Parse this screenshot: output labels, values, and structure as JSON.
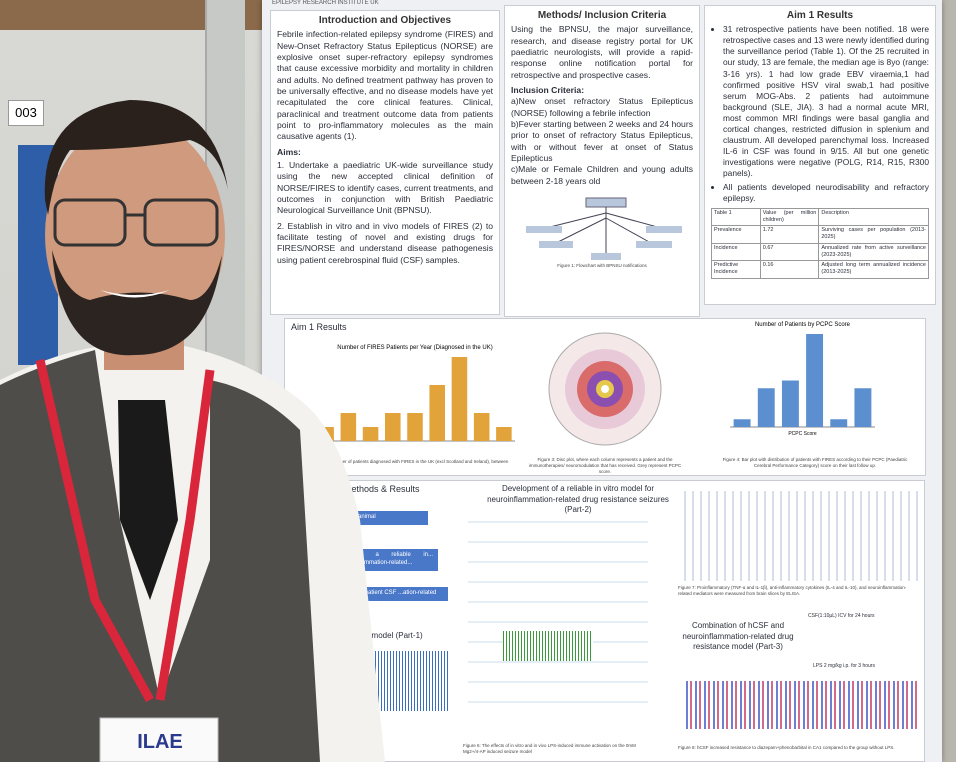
{
  "sign": {
    "number": "003"
  },
  "poster": {
    "logo_text": "EPILEPSY RESEARCH INSTITUTE UK",
    "intro": {
      "title": "Introduction and Objectives",
      "body": "Febrile infection-related epilepsy syndrome (FIRES) and New-Onset Refractory Status Epilepticus (NORSE) are explosive onset super-refractory epilepsy syndromes that cause excessive morbidity and mortality in children and adults. No defined treatment pathway has proven to be universally effective, and no disease models have yet recapitulated the core clinical features. Clinical, paraclinical and treatment outcome data from patients point to pro-inflammatory molecules as the main causative agents (1).",
      "aims_title": "Aims:",
      "aims": [
        "1. Undertake a paediatric UK-wide surveillance study using the new accepted clinical definition of NORSE/FIRES to identify cases, current treatments, and outcomes in conjunction with British Paediatric Neurological Surveillance Unit (BPNSU).",
        "2. Establish in vitro and in vivo models of FIRES (2) to facilitate testing of novel and existing drugs for FIRES/NORSE and understand disease pathogenesis using patient cerebrospinal fluid (CSF) samples."
      ]
    },
    "methods": {
      "title": "Methods/ Inclusion Criteria",
      "body": "Using the BPNSU, the major surveillance, research, and disease registry portal for UK paediatric neurologists, will provide a rapid-response online notification portal for retrospective and prospective cases.",
      "criteria_title": "Inclusion Criteria:",
      "criteria": [
        "a)New onset refractory Status Epilepticus (NORSE) following a febrile infection",
        "b)Fever starting between 2 weeks and 24 hours prior to onset of refractory Status Epilepticus, with or without fever at onset of Status Epilepticus",
        "c)Male or Female Children and young adults between 2-18 years old"
      ],
      "caption": "Figure 1: Flowchart with BPNSU notifications"
    },
    "results": {
      "title": "Aim 1 Results",
      "items": [
        "31 retrospective patients have been notified. 18 were retrospective cases and 13 were newly identified during the surveillance period (Table 1). Of the 25 recruited in our study, 13 are female, the median age is 8yo (range: 3-16 yrs). 1 had low grade EBV viraemia,1 had confirmed positive HSV viral swab,1 had positive serum MOG-Abs. 2 patients had autoimmune background (SLE, JIA). 3 had a normal acute MRI, most common MRI findings were basal ganglia and cortical changes, restricted diffusion in splenium and claustrum. All developed parenchymal loss. Increased IL-6 in CSF was found in 9/15. All but one genetic investigations were negative (POLG, R14, R15, R300 panels).",
        "All patients developed neurodisability and refractory epilepsy."
      ],
      "table": {
        "header": [
          "Table 1",
          "Value (per million children)",
          "Description"
        ],
        "rows": [
          [
            "Prevalence",
            1.72,
            "Surviving cases per population (2013-2025)"
          ],
          [
            "Incidence",
            0.67,
            "Annualized rate from active surveillance (2023-2025)"
          ],
          [
            "Predictive Incidence",
            0.16,
            "Adjusted long term annualized incidence (2013-2025)"
          ]
        ]
      }
    },
    "panel": {
      "title": "Aim 1 Results",
      "chart1": {
        "type": "bar",
        "title": "Number of FIRES Patients per Year (Diagnosed in the UK)",
        "color": "#e2a33a",
        "values": [
          2,
          4,
          2,
          4,
          4,
          8,
          12,
          4,
          2
        ]
      },
      "chart2": {
        "type": "bar",
        "title": "Number of Patients by PCPC Score",
        "color": "#5b8fcf",
        "values": [
          1,
          5,
          6,
          12,
          1,
          5
        ],
        "x_label": "PCPC Score"
      },
      "caption1": "Figure 2: Number of patients diagnosed with FIRES in the UK (excl Scotland and Ireland), between",
      "caption2": "Figure 3: Disc plot, where each column represents a patient and the immunotherapies/ neuromodulation that has received. Grey represent PCPC score.",
      "caption3": "Figure 4: Bar plot with distribution of patients with FIRES according to their PCPC (Paediatric Cerebral Performance Category) score on their last follow up."
    },
    "lower": {
      "title": "Methods & Results",
      "flow": [
        "...animal",
        "...of a reliable in... inflammation-related...",
        "...of patient CSF ...ation-related"
      ],
      "model1": "...imal model (Part-1)",
      "part2": "Development of a reliable in vitro model for neuroinflammation-related drug resistance seizures (Part-2)",
      "part3": "Combination of hCSF and neuroinflammation-related drug resistance model (Part-3)",
      "dose1": "CSF(1:10µL) ICV for 24 hours",
      "dose2": "LPS 2 mg/kg i.p. for 3 hours",
      "fig6": "Figure 6: The effects of in vitro and in vivo LPS-induced immune activation on the 0mM Mg2+/4-AP induced seizure model",
      "fig7": "Figure 7: Proinflammatory (TNF-α and IL-1β), anti-inflammatory cytokines (IL-4 and IL-10), and neuroinflammation-related mediators were measured from brain slices by ELISA.",
      "fig8": "Figure 8: hCSF increased resistance to diazepam+phenobarbital in CA1 compared to the group without LPS."
    }
  },
  "badge": {
    "text": "ILAE"
  }
}
